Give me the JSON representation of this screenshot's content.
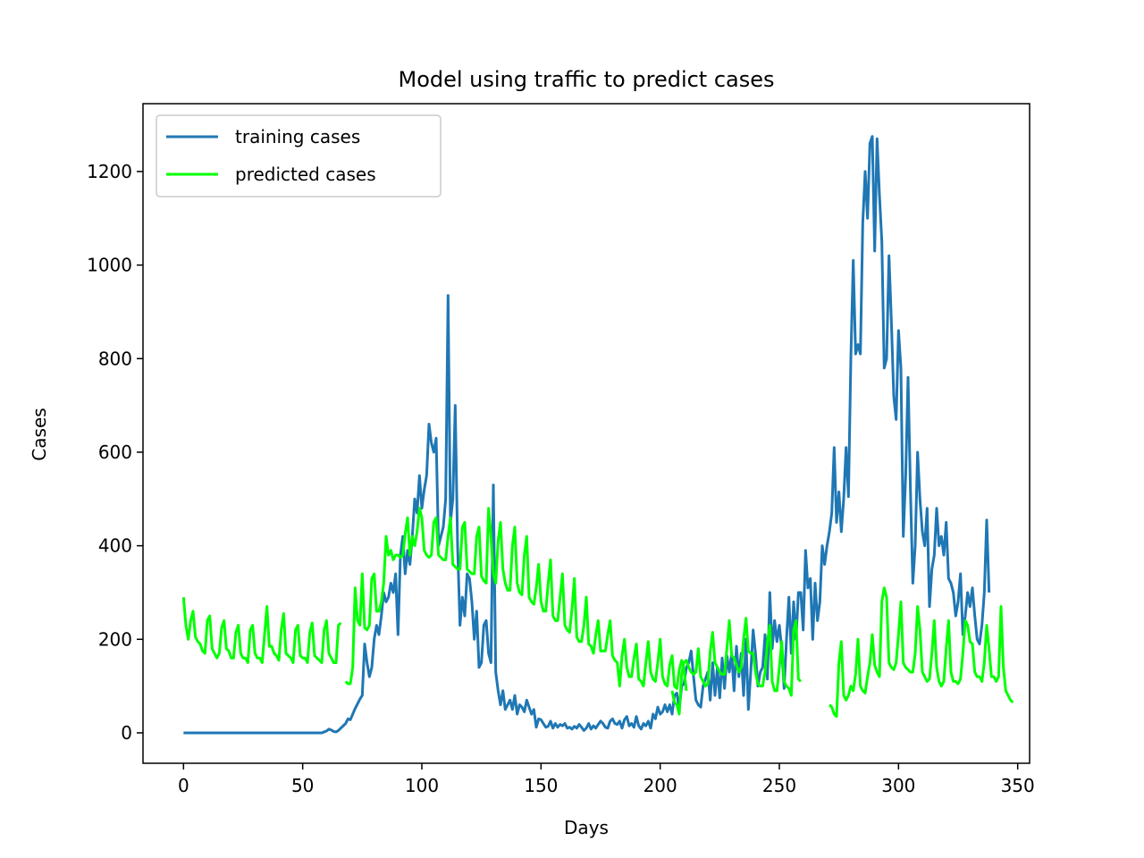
{
  "chart_data": {
    "type": "line",
    "title": "Model using traffic to predict cases",
    "xlabel": "Days",
    "ylabel": "Cases",
    "xlim": [
      -17,
      355
    ],
    "ylim": [
      -65,
      1345
    ],
    "xticks": [
      0,
      50,
      100,
      150,
      200,
      250,
      300,
      350
    ],
    "yticks": [
      0,
      200,
      400,
      600,
      800,
      1000,
      1200
    ],
    "grid": false,
    "legend_position": "top-left",
    "series": [
      {
        "name": "training cases",
        "color": "#1f77b4",
        "x_start": 0,
        "segments": [
          [
            0,
            0,
            0,
            0,
            0,
            0,
            0,
            0,
            0,
            0,
            0,
            0,
            0,
            0,
            0,
            0,
            0,
            0,
            0,
            0,
            0,
            0,
            0,
            0,
            0,
            0,
            0,
            0,
            0,
            0,
            0,
            0,
            0,
            0,
            0,
            0,
            0,
            0,
            0,
            0,
            0,
            0,
            0,
            0,
            0,
            0,
            0,
            0,
            0,
            0,
            0,
            0,
            0,
            0,
            0,
            0,
            0,
            0,
            0,
            2,
            4,
            8,
            6,
            3,
            2,
            5,
            10,
            15,
            20,
            30,
            28,
            40,
            52,
            62,
            72,
            80,
            190,
            150,
            120,
            140,
            200,
            230,
            210,
            250,
            300,
            280,
            290,
            320,
            300,
            340,
            210,
            380,
            420,
            340,
            390,
            360,
            420,
            500,
            470,
            550,
            480,
            520,
            550,
            660,
            620,
            600,
            630,
            400,
            420,
            440,
            500,
            935,
            450,
            500,
            700,
            400,
            230,
            290,
            250,
            340,
            330,
            280,
            200,
            260,
            140,
            150,
            230,
            240,
            170,
            150,
            530,
            130,
            90,
            60,
            90,
            50,
            60,
            70,
            50,
            80,
            40,
            60,
            55,
            45,
            70,
            55,
            40,
            50,
            12,
            30,
            28,
            20,
            12,
            14,
            25,
            10,
            20,
            12,
            18,
            15,
            20,
            10,
            12,
            8,
            14,
            10,
            18,
            12,
            5,
            10,
            20,
            8,
            15,
            10,
            18,
            25,
            20,
            12,
            10,
            25,
            30,
            20,
            18,
            25,
            10,
            28,
            35,
            15,
            20,
            12,
            35,
            15,
            8,
            20,
            15,
            25,
            10,
            40,
            30,
            55,
            40,
            45,
            60,
            45,
            60,
            40,
            80,
            85,
            50,
            100,
            105,
            140,
            150,
            175,
            120,
            70,
            60,
            55,
            100,
            115,
            130,
            70,
            150,
            80,
            140,
            75,
            160,
            95,
            165,
            130,
            170,
            90,
            185,
            120,
            170,
            80,
            200,
            50,
            130,
            220,
            170,
            100,
            130,
            140,
            210,
            115,
            300,
            180,
            240,
            195,
            230,
            180,
            95,
            200,
            290,
            170,
            280,
            200,
            300,
            300,
            220,
            390,
            310,
            330,
            200,
            320,
            240,
            280,
            400,
            360,
            400,
            430,
            470,
            610,
            450,
            515,
            430,
            500,
            610,
            505,
            800,
            1010,
            810,
            830,
            810,
            1090,
            1200,
            1100,
            1260,
            1275,
            1030,
            1270,
            1150,
            1050,
            780,
            800,
            1020,
            880,
            720,
            670,
            860,
            780,
            420,
            550,
            760,
            520,
            320,
            400,
            600,
            500,
            430,
            400,
            480,
            270,
            350,
            380,
            480,
            400,
            420,
            380,
            450,
            330,
            320,
            300,
            250,
            280,
            340,
            210,
            250,
            300,
            270,
            310,
            250,
            200,
            190,
            230,
            300,
            455,
            300
          ]
        ]
      },
      {
        "name": "predicted cases",
        "color": "#00ff00",
        "x_start": 0,
        "segments": [
          [
            290,
            230,
            200,
            240,
            260,
            205,
            195,
            190,
            175,
            170,
            240,
            250,
            180,
            170,
            160,
            170,
            225,
            240,
            180,
            175,
            160,
            160,
            215,
            230,
            170,
            160,
            160,
            150,
            220,
            230,
            170,
            160,
            160,
            150,
            210,
            270,
            185,
            185,
            170,
            165,
            155,
            220,
            255,
            170,
            165,
            160,
            150,
            220,
            230,
            165,
            160,
            160,
            150,
            215,
            235,
            165,
            160,
            155,
            150,
            220,
            240,
            170,
            160,
            150,
            150,
            230,
            235
          ],
          [
            110,
            105,
            105,
            140,
            310,
            240,
            230,
            340,
            225,
            220,
            230,
            330,
            340,
            260,
            260,
            280,
            320,
            420,
            380,
            390,
            370,
            380,
            380,
            375,
            380,
            425,
            460,
            380,
            420,
            400,
            430,
            480,
            460,
            390,
            380,
            375,
            380,
            450,
            460,
            380,
            375,
            370,
            370,
            420,
            460,
            360,
            355,
            350,
            350,
            440,
            450,
            350,
            345,
            340,
            340,
            420,
            440,
            335,
            325,
            320,
            480,
            420,
            340,
            320,
            410,
            450,
            350,
            320,
            305,
            305,
            400,
            440,
            320,
            300,
            295,
            380,
            420,
            290,
            280,
            275,
            310,
            360,
            280,
            260,
            260,
            320,
            370,
            250,
            240,
            240,
            290,
            340,
            230,
            220,
            215,
            265,
            330,
            205,
            195,
            195,
            230,
            290,
            190,
            185,
            170,
            210,
            240,
            175,
            175,
            175,
            210,
            240,
            165,
            155,
            150,
            100,
            165,
            200,
            140,
            120,
            120,
            160,
            190,
            115,
            110,
            100,
            150,
            195,
            130,
            115,
            110,
            150,
            200,
            120,
            105,
            100,
            145,
            165,
            100,
            95,
            135,
            155,
            135,
            90
          ],
          [
            90,
            65,
            60,
            40,
            125,
            150,
            155,
            140,
            130,
            125,
            130,
            180,
            120,
            110,
            100,
            105,
            175,
            215,
            150,
            140,
            130,
            125,
            125,
            180,
            240,
            165,
            160,
            145,
            130,
            140,
            200,
            245,
            175,
            170,
            170,
            130,
            105,
            100,
            100,
            130,
            195,
            230,
            110,
            90,
            90,
            140,
            195,
            110,
            100,
            95,
            80,
            220,
            240,
            115,
            110
          ],
          [
            60,
            55,
            40,
            35,
            150,
            195,
            80,
            70,
            80,
            100,
            90,
            125,
            200,
            100,
            90,
            85,
            120,
            150,
            210,
            145,
            130,
            120,
            280,
            310,
            290,
            150,
            140,
            135,
            150,
            210,
            280,
            150,
            140,
            135,
            130,
            130,
            170,
            270,
            220,
            130,
            120,
            110,
            115,
            170,
            240,
            140,
            110,
            100,
            110,
            180,
            240,
            130,
            110,
            110,
            105,
            115,
            170,
            240,
            230,
            195,
            190,
            130,
            120,
            120,
            110,
            150,
            230,
            180,
            120,
            120,
            110,
            120,
            270,
            140,
            90,
            80,
            70,
            65
          ]
        ],
        "segment_starts": [
          0,
          68,
          205,
          271
        ]
      }
    ]
  }
}
